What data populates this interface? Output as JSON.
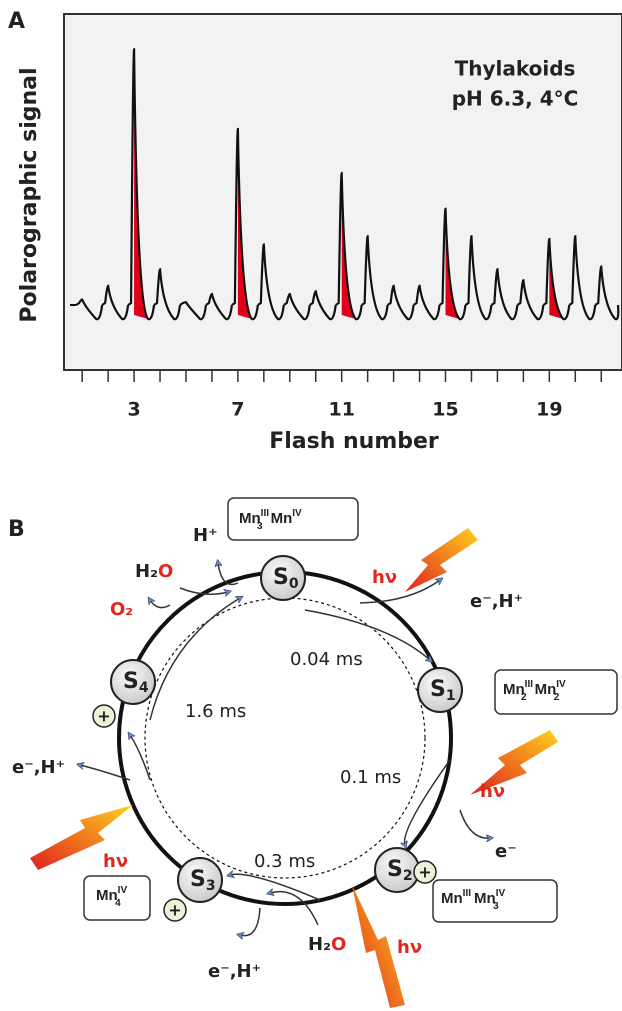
{
  "panel_a": {
    "label": "A",
    "y_label": "Polarographic signal",
    "x_label": "Flash number",
    "annotation": [
      "Thylakoids",
      "pH 6.3, 4°C"
    ],
    "xlim": [
      0.3,
      21.8
    ],
    "xticks": [
      3,
      7,
      11,
      15,
      19
    ],
    "ylim": [
      0,
      100
    ],
    "flashes": [
      1,
      2,
      3,
      4,
      5,
      6,
      7,
      8,
      9,
      10,
      11,
      12,
      13,
      14,
      15,
      16,
      17,
      18,
      19,
      20,
      21
    ],
    "signal": [
      2,
      7,
      93,
      13,
      1,
      4,
      64,
      22,
      4,
      5,
      48,
      25,
      7,
      7,
      35,
      25,
      13,
      9,
      24,
      25,
      14
    ],
    "highlight": [
      3,
      7,
      11,
      15,
      19
    ]
  },
  "panel_b": {
    "label": "B",
    "states": [
      [
        "S",
        "0"
      ],
      [
        "S",
        "1"
      ],
      [
        "S",
        "2"
      ],
      [
        "S",
        "3"
      ],
      [
        "S",
        "4"
      ]
    ],
    "mn_s0": [
      "Mn",
      "III",
      "3",
      "Mn",
      "IV"
    ],
    "mn_s1": [
      "Mn",
      "III",
      "2",
      "Mn",
      "IV",
      "2"
    ],
    "mn_s2": [
      "Mn",
      "III",
      "Mn",
      "IV",
      "3"
    ],
    "mn_s3": [
      "Mn",
      "IV",
      "4"
    ],
    "times": [
      "0.04 ms",
      "0.1 ms",
      "0.3 ms",
      "1.6 ms"
    ],
    "light": [
      "hν",
      "hν",
      "hν",
      "hν"
    ],
    "h_plus": "H⁺",
    "water_top": [
      "H₂",
      "O"
    ],
    "o2": "O₂",
    "water_bottom": [
      "H₂",
      "O"
    ],
    "e_h": [
      "e⁻,H⁺",
      "e⁻,H⁺",
      "e⁻,H⁺"
    ],
    "e_only": "e⁻",
    "plus": [
      "+",
      "+",
      "+"
    ]
  }
}
